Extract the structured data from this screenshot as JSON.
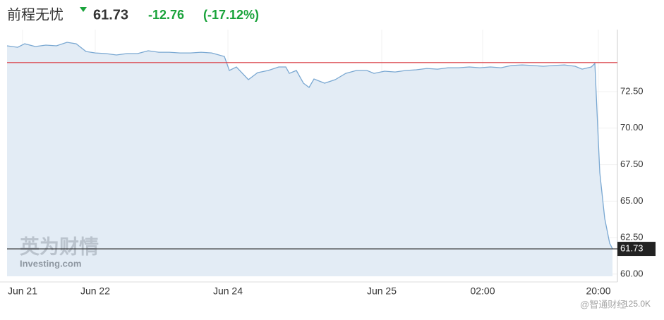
{
  "chart_data": {
    "type": "area",
    "title": "前程无忧",
    "price": "61.73",
    "change": "-12.76",
    "change_percent": "(-17.12%)",
    "color": "#7aa8d2",
    "fill_color": "#e3ecf5",
    "grid": true,
    "x": [
      0,
      15,
      25,
      40,
      55,
      70,
      85,
      98,
      112,
      125,
      140,
      155,
      170,
      185,
      200,
      215,
      230,
      245,
      260,
      275,
      290,
      308,
      315,
      325,
      342,
      355,
      370,
      385,
      395,
      400,
      410,
      420,
      428,
      435,
      450,
      465,
      480,
      495,
      510,
      520,
      535,
      550,
      565,
      580,
      595,
      610,
      625,
      640,
      655,
      670,
      685,
      700,
      715,
      730,
      745,
      760,
      775,
      790,
      805,
      815,
      828,
      833,
      840,
      847,
      854,
      858
    ],
    "values": [
      75.64,
      75.54,
      75.78,
      75.59,
      75.69,
      75.64,
      75.88,
      75.78,
      75.25,
      75.15,
      75.11,
      75.01,
      75.11,
      75.11,
      75.3,
      75.2,
      75.2,
      75.15,
      75.15,
      75.2,
      75.15,
      74.91,
      73.95,
      74.19,
      73.32,
      73.8,
      73.95,
      74.19,
      74.19,
      73.75,
      73.95,
      73.08,
      72.79,
      73.37,
      73.08,
      73.32,
      73.75,
      73.95,
      73.95,
      73.75,
      73.9,
      73.85,
      73.95,
      74.0,
      74.09,
      74.04,
      74.14,
      74.14,
      74.19,
      74.14,
      74.19,
      74.14,
      74.29,
      74.33,
      74.29,
      74.24,
      74.29,
      74.33,
      74.24,
      74.04,
      74.19,
      74.43,
      66.95,
      63.81,
      62.12,
      61.73
    ],
    "xlim": [
      0,
      865
    ],
    "xticks": [
      {
        "value": 22,
        "label": "Jun 21"
      },
      {
        "value": 125,
        "label": "Jun 22"
      },
      {
        "value": 313,
        "label": "Jun 24"
      },
      {
        "value": 531,
        "label": "Jun 25"
      },
      {
        "value": 674,
        "label": "02:00"
      },
      {
        "value": 838,
        "label": "20:00"
      }
    ],
    "ylim": [
      59.85,
      76.75
    ],
    "yticks": [
      {
        "value": 60,
        "label": "60.00"
      },
      {
        "value": 62.5,
        "label": "62.50"
      },
      {
        "value": 65,
        "label": "65.00"
      },
      {
        "value": 67.5,
        "label": "67.50"
      },
      {
        "value": 70,
        "label": "70.00"
      },
      {
        "value": 72.5,
        "label": "72.50"
      }
    ],
    "reference_lines": [
      {
        "value": 74.49,
        "color": "#d9363e"
      },
      {
        "value": 61.73,
        "color": "#222222",
        "label": "61.73"
      }
    ],
    "watermark": "英为财情",
    "watermark_sub": "Investing.com",
    "source": "@智通财经",
    "volume_label": "125.0K"
  }
}
